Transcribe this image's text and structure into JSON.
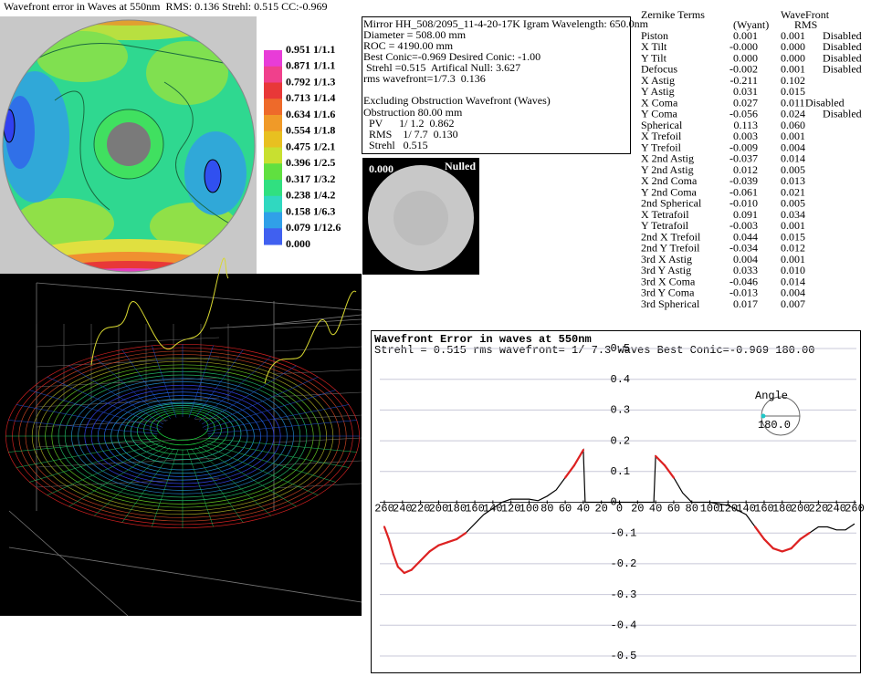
{
  "contour_map": {
    "title": "Wavefront error in Waves at 550nm  RMS: 0.136 Strehl: 0.515 CC:-0.969",
    "legend_labels": [
      "0.951 1/1.1",
      "0.871 1/1.1",
      "0.792 1/1.3",
      "0.713 1/1.4",
      "0.634 1/1.6",
      "0.554 1/1.8",
      "0.475 1/2.1",
      "0.396 1/2.5",
      "0.317 1/3.2",
      "0.238 1/4.2",
      "0.158 1/6.3",
      "0.079 1/12.6",
      "0.000"
    ]
  },
  "info_box": {
    "lines": [
      "Mirror HH_508/2095_11-4-20-17K Igram Wavelength: 650.0nm",
      "Diameter = 508.00 mm",
      "ROC = 4190.00 mm",
      "Best Conic=-0.969 Desired Conic: -1.00",
      " Strehl =0.515  Artifical Null: 3.627",
      "rms wavefront=1/7.3  0.136",
      "Excluding Obstruction Wavefront (Waves)",
      "Obstruction 80.00 mm",
      "  PV      1/ 1.2  0.862",
      "  RMS    1/ 7.7  0.130",
      "  Strehl   0.515"
    ]
  },
  "nulled_image": {
    "value": "0.000",
    "label": "Nulled"
  },
  "zernike_table": {
    "header": {
      "terms": "Zernike Terms",
      "wavefront": "WaveFront",
      "wyant": "(Wyant)",
      "rms": "RMS"
    },
    "rows": [
      [
        "Piston",
        "0.001",
        "0.001",
        "Disabled"
      ],
      [
        "X Tilt",
        "-0.000",
        "0.000",
        "Disabled"
      ],
      [
        "Y Tilt",
        "0.000",
        "0.000",
        "Disabled"
      ],
      [
        "Defocus",
        "-0.002",
        "0.001",
        "Disabled"
      ],
      [
        "X Astig",
        "-0.211",
        "0.102"
      ],
      [
        "Y Astig",
        "0.031",
        "0.015"
      ],
      [
        "X Coma",
        "0.027",
        "0.011",
        "Disabled"
      ],
      [
        "Y Coma",
        "-0.056",
        "0.024",
        "Disabled"
      ],
      [
        "Spherical",
        "0.113",
        "0.060"
      ],
      [
        "X Trefoil",
        "0.003",
        "0.001"
      ],
      [
        "Y Trefoil",
        "-0.009",
        "0.004"
      ],
      [
        "X 2nd Astig",
        "-0.037",
        "0.014"
      ],
      [
        "Y 2nd Astig",
        "0.012",
        "0.005"
      ],
      [
        "X 2nd Coma",
        "-0.039",
        "0.013"
      ],
      [
        "Y 2nd Coma",
        "-0.061",
        "0.021"
      ],
      [
        "2nd Spherical",
        "-0.010",
        "0.005"
      ],
      [
        "X Tetrafoil",
        "0.091",
        "0.034"
      ],
      [
        "Y Tetrafoil",
        "-0.003",
        "0.001"
      ],
      [
        "2nd X Trefoil",
        "0.044",
        "0.015"
      ],
      [
        "2nd Y Trefoil",
        "-0.034",
        "0.012"
      ],
      [
        "3rd X Astig",
        "0.004",
        "0.001"
      ],
      [
        "3rd Y Astig",
        "0.033",
        "0.010"
      ],
      [
        "3rd X Coma",
        "-0.046",
        "0.014"
      ],
      [
        "3rd Y Coma",
        "-0.013",
        "0.004"
      ],
      [
        "3rd Spherical",
        "0.017",
        "0.007"
      ]
    ]
  },
  "chart_data": {
    "type": "line",
    "title": "Wavefront Error in waves at 550nm",
    "subtitle": "Strehl = 0.515 rms wavefront= 1/ 7.3 Waves Best Conic=-0.969 180.00",
    "x": [
      -260,
      -255,
      -250,
      -245,
      -238,
      -230,
      -220,
      -210,
      -200,
      -190,
      -180,
      -170,
      -160,
      -150,
      -140,
      -130,
      -120,
      -100,
      -90,
      -80,
      -70,
      -60,
      -50,
      -40,
      -38,
      0,
      38,
      40,
      50,
      60,
      70,
      80,
      100,
      120,
      140,
      150,
      160,
      170,
      180,
      190,
      200,
      210,
      220,
      230,
      240,
      250,
      260
    ],
    "values": [
      -0.08,
      -0.12,
      -0.17,
      -0.21,
      -0.23,
      -0.22,
      -0.19,
      -0.16,
      -0.14,
      -0.13,
      -0.12,
      -0.1,
      -0.07,
      -0.04,
      -0.02,
      0,
      0.01,
      0.01,
      0.005,
      0.02,
      0.04,
      0.08,
      0.12,
      0.17,
      0,
      0,
      0,
      0.15,
      0.12,
      0.08,
      0.03,
      0,
      0,
      -0.01,
      -0.04,
      -0.08,
      -0.12,
      -0.15,
      -0.16,
      -0.15,
      -0.12,
      -0.1,
      -0.08,
      -0.08,
      -0.09,
      -0.09,
      -0.07
    ],
    "color": "#000000",
    "highlight": {
      "threshold": 0.1,
      "color": "#dd2222"
    },
    "xlim": [
      -260,
      260
    ],
    "xticks": [
      {
        "value": -260,
        "label": "260"
      },
      {
        "value": -240,
        "label": "240"
      },
      {
        "value": -220,
        "label": "220"
      },
      {
        "value": -200,
        "label": "200"
      },
      {
        "value": -180,
        "label": "180"
      },
      {
        "value": -160,
        "label": "160"
      },
      {
        "value": -140,
        "label": "140"
      },
      {
        "value": -120,
        "label": "120"
      },
      {
        "value": -100,
        "label": "100"
      },
      {
        "value": -80,
        "label": "80"
      },
      {
        "value": -60,
        "label": "60"
      },
      {
        "value": -40,
        "label": "40"
      },
      {
        "value": -20,
        "label": "20"
      },
      0,
      20,
      40,
      60,
      80,
      100,
      120,
      140,
      160,
      180,
      200,
      220,
      240,
      260
    ],
    "ylim": [
      -0.5,
      0.5
    ],
    "yticks": [
      0.5,
      0.4,
      0.3,
      0.2,
      0.1,
      {
        "value": 0,
        "label": "0."
      },
      -0.1,
      -0.2,
      -0.3,
      -0.4,
      -0.5
    ],
    "grid": true
  },
  "angle_widget": {
    "label": "Angle",
    "value_text": "180.0"
  }
}
